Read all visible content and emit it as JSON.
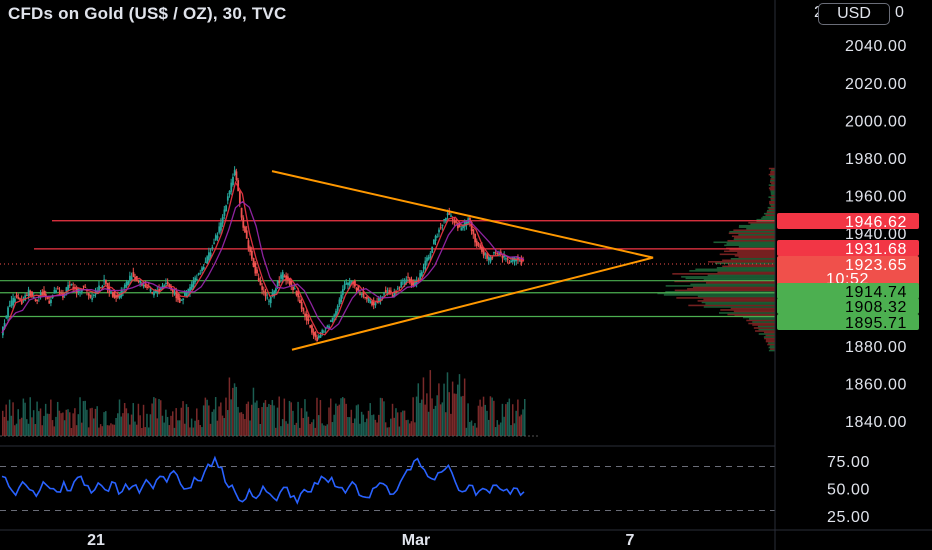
{
  "title": "CFDs on Gold (US$ / OZ), 30, TVC",
  "currency": "USD",
  "top_partial_label": "2",
  "colors": {
    "up": "#26a69a",
    "down": "#ef5350",
    "triangle": "#ff9800",
    "rsi": "#2962ff",
    "red_line": "#f23645",
    "green_line": "#4caf50",
    "ma_red": "#f23645",
    "ma_purple": "#9c27b0"
  },
  "price_axis": {
    "ticks": [
      "2040.00",
      "2020.00",
      "2000.00",
      "1980.00",
      "1960.00",
      "1940.00",
      "1880.00",
      "1860.00",
      "1840.00"
    ]
  },
  "rsi_axis": {
    "ticks": [
      "75.00",
      "50.00",
      "25.00"
    ]
  },
  "time_axis": {
    "labels": [
      "21",
      "Mar",
      "7"
    ]
  },
  "price_tags": [
    {
      "label": "1946.62",
      "color": "#f23645",
      "level": 1946.62
    },
    {
      "label": "1931.68",
      "color": "#f23645",
      "level": 1931.68
    },
    {
      "label": "1923.65",
      "color": "#f0504b",
      "level": 1923.65,
      "countdown": "10:52"
    },
    {
      "label": "1914.74",
      "color": "#4caf50",
      "level": 1914.74
    },
    {
      "label": "1908.32",
      "color": "#4caf50",
      "level": 1908.32
    },
    {
      "label": "1895.71",
      "color": "#4caf50",
      "level": 1895.71
    }
  ],
  "chart_data": {
    "type": "line",
    "title": "CFDs on Gold (US$ / OZ), 30, TVC",
    "xlabel": "",
    "ylabel": "",
    "ylim": [
      1835,
      2050
    ],
    "x_labels": [
      "21",
      "Mar",
      "7"
    ],
    "series": [
      {
        "values": [
          1887,
          1900,
          1906,
          1903,
          1909,
          1905,
          1908,
          1904,
          1910,
          1906,
          1914,
          1908,
          1912,
          1906,
          1910,
          1914,
          1908,
          1906,
          1912,
          1918,
          1914,
          1912,
          1908,
          1910,
          1914,
          1909,
          1904,
          1908,
          1914,
          1920,
          1927,
          1935,
          1945,
          1960,
          1974,
          1948,
          1933,
          1920,
          1910,
          1903,
          1912,
          1918,
          1914,
          1908,
          1898,
          1890,
          1884,
          1888,
          1893,
          1902,
          1912,
          1915,
          1909,
          1906,
          1902,
          1905,
          1910,
          1907,
          1912,
          1916,
          1912,
          1918,
          1926,
          1935,
          1944,
          1951,
          1946,
          1942,
          1948,
          1936,
          1930,
          1926,
          1930,
          1928,
          1925,
          1927,
          1924
        ]
      }
    ],
    "rsi": {
      "ylim": [
        20,
        85
      ],
      "levels": [
        70,
        30
      ],
      "values": [
        61,
        52,
        44,
        56,
        49,
        43,
        56,
        50,
        47,
        56,
        48,
        60,
        53,
        46,
        55,
        49,
        56,
        45,
        54,
        52,
        46,
        58,
        50,
        61,
        56,
        66,
        54,
        50,
        60,
        57,
        72,
        78,
        69,
        51,
        46,
        38,
        49,
        41,
        52,
        45,
        39,
        51,
        42,
        37,
        49,
        47,
        54,
        59,
        60,
        51,
        46,
        56,
        44,
        42,
        50,
        55,
        52,
        45,
        56,
        67,
        75,
        70,
        61,
        58,
        65,
        71,
        56,
        47,
        53,
        44,
        50,
        46,
        53,
        48,
        45,
        50,
        47
      ]
    },
    "horizontal_levels": [
      1946.62,
      1931.68,
      1914.74,
      1908.32,
      1895.71
    ],
    "triangle": {
      "upper": [
        [
          34,
          1973
        ],
        [
          66,
          1927
        ]
      ],
      "lower": [
        [
          36,
          1878
        ],
        [
          66,
          1927
        ]
      ]
    }
  }
}
